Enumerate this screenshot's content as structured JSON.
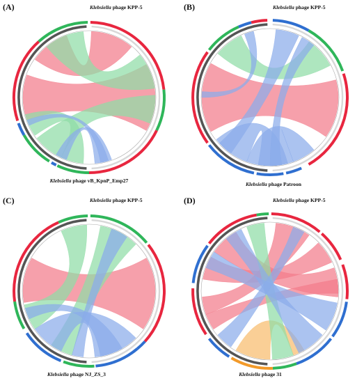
{
  "colors": {
    "red": "#e8263f",
    "green": "#2fb65a",
    "blue": "#2f6fd0",
    "orange": "#f29a2a",
    "gray": "#555555",
    "ribbon_red": "#f27c8a",
    "ribbon_green": "#8fdca6",
    "ribbon_blue": "#8aacea",
    "ribbon_orange": "#f8bd6e"
  },
  "panels": [
    {
      "label": "(A)",
      "top_genus": "Klebsiella",
      "top_rest": " phage KPP-5",
      "bottom_genus": "Klebsiella",
      "bottom_rest": " phage vB_KpnP_Emp27"
    },
    {
      "label": "(B)",
      "top_genus": "Klebsiella",
      "top_rest": " phage KPP-5",
      "bottom_genus": "Klebsiella",
      "bottom_rest": " phage Patroon"
    },
    {
      "label": "(C)",
      "top_genus": "Klebsiella",
      "top_rest": " phage KPP-5",
      "bottom_genus": "Klebsiella",
      "bottom_rest": " phage NJ_ZS_3"
    },
    {
      "label": "(D)",
      "top_genus": "Klebsiella",
      "top_rest": " phage KPP-5",
      "bottom_genus": "Klebsiella",
      "bottom_rest": " phage 31"
    }
  ]
}
